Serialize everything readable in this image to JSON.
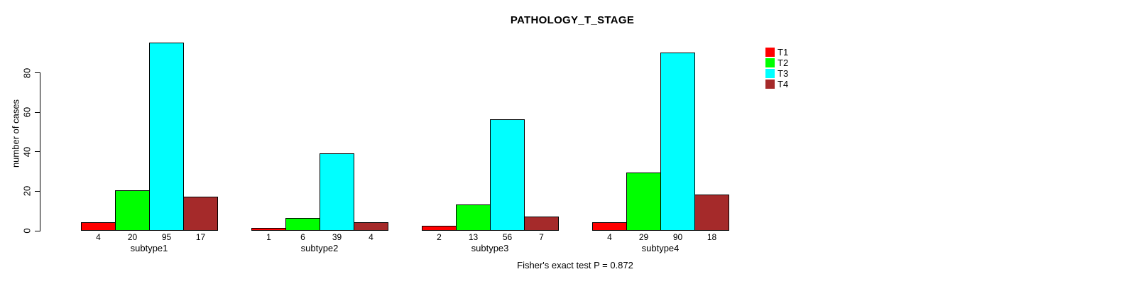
{
  "chart_data": {
    "type": "bar",
    "title": "PATHOLOGY_T_STAGE",
    "xlabel": "",
    "ylabel": "number of cases",
    "categories": [
      "subtype1",
      "subtype2",
      "subtype3",
      "subtype4"
    ],
    "series": [
      {
        "name": "T1",
        "color": "#ff0000",
        "values": [
          4,
          1,
          2,
          4
        ]
      },
      {
        "name": "T2",
        "color": "#00ff00",
        "values": [
          20,
          6,
          13,
          29
        ]
      },
      {
        "name": "T3",
        "color": "#00ffff",
        "values": [
          95,
          39,
          56,
          90
        ]
      },
      {
        "name": "T4",
        "color": "#a52a2a",
        "values": [
          17,
          4,
          7,
          18
        ]
      }
    ],
    "y_ticks": [
      0,
      20,
      40,
      60,
      80
    ],
    "ylim": [
      0,
      95
    ],
    "grid": false,
    "legend_position": "top-right",
    "bar_value_labels": true,
    "annotation": "Fisher's exact test P = 0.872"
  },
  "colors": {
    "background": "#ffffff",
    "axis": "#000000",
    "text": "#000000"
  }
}
